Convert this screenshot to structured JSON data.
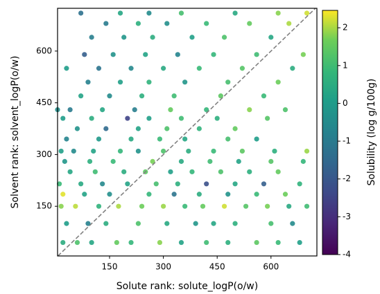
{
  "chart_data": {
    "type": "scatter",
    "x_label": "Solute rank: solute_logP(o/w)",
    "y_label": "Solvent rank: solvent_logP(o/w)",
    "colorbar_label": "Solubility (log g/100g)",
    "colormap": "viridis",
    "identity_line": true,
    "xlim": [
      5,
      728
    ],
    "xticks": [
      150,
      300,
      450,
      600
    ],
    "ylim": [
      6,
      724
    ],
    "yticks": [
      150,
      300,
      450,
      600
    ],
    "clim": [
      -4,
      2.46
    ],
    "cticks": [
      -4,
      -3,
      -2,
      -1,
      0,
      1,
      2
    ],
    "x": [
      20,
      60,
      100,
      170,
      210,
      290,
      350,
      420,
      480,
      560,
      620,
      680,
      30,
      90,
      140,
      230,
      310,
      390,
      440,
      500,
      600,
      660,
      15,
      55,
      120,
      175,
      240,
      300,
      360,
      410,
      470,
      530,
      590,
      650,
      700,
      20,
      80,
      150,
      260,
      330,
      400,
      480,
      560,
      640,
      10,
      70,
      130,
      200,
      280,
      340,
      420,
      500,
      580,
      680,
      40,
      110,
      190,
      250,
      320,
      380,
      460,
      540,
      620,
      25,
      95,
      160,
      270,
      350,
      430,
      510,
      600,
      690,
      15,
      50,
      105,
      180,
      230,
      300,
      370,
      440,
      520,
      610,
      700,
      30,
      120,
      210,
      290,
      360,
      480,
      560,
      60,
      140,
      230,
      310,
      400,
      500,
      20,
      100,
      200,
      260,
      350,
      450,
      590,
      5,
      40,
      130,
      220,
      320,
      420,
      540,
      640,
      70,
      150,
      240,
      330,
      460,
      580,
      90,
      180,
      260,
      360,
      480,
      620,
      30,
      120,
      210,
      300,
      400,
      520,
      660,
      80,
      160,
      250,
      340,
      440,
      560,
      690,
      100,
      190,
      270,
      380,
      470,
      600,
      140,
      230,
      310,
      420,
      540,
      650,
      70,
      180,
      260,
      350,
      500,
      620,
      700
    ],
    "values": [
      45,
      45,
      45,
      45,
      45,
      45,
      45,
      45,
      45,
      45,
      45,
      45,
      100,
      100,
      100,
      100,
      100,
      100,
      100,
      100,
      100,
      100,
      150,
      150,
      150,
      150,
      150,
      150,
      150,
      150,
      150,
      150,
      150,
      150,
      150,
      185,
      185,
      185,
      185,
      185,
      185,
      185,
      185,
      185,
      215,
      215,
      215,
      215,
      215,
      215,
      215,
      215,
      215,
      215,
      250,
      250,
      250,
      250,
      250,
      250,
      250,
      250,
      250,
      280,
      280,
      280,
      280,
      280,
      280,
      280,
      280,
      280,
      310,
      310,
      310,
      310,
      310,
      310,
      310,
      310,
      310,
      310,
      310,
      345,
      345,
      345,
      345,
      345,
      345,
      345,
      375,
      375,
      375,
      375,
      375,
      375,
      405,
      405,
      405,
      405,
      405,
      405,
      405,
      430,
      430,
      430,
      430,
      430,
      430,
      430,
      430,
      470,
      470,
      470,
      470,
      470,
      470,
      510,
      510,
      510,
      510,
      510,
      510,
      550,
      550,
      550,
      550,
      550,
      550,
      550,
      590,
      590,
      590,
      590,
      590,
      590,
      590,
      640,
      640,
      640,
      640,
      640,
      640,
      680,
      680,
      680,
      680,
      680,
      680,
      710,
      710,
      710,
      710,
      710,
      710,
      710
    ],
    "color_values": [
      0.5,
      1.2,
      0.3,
      1.5,
      0.8,
      1.8,
      0.2,
      1.0,
      0.6,
      1.4,
      0.9,
      0.1,
      0.0,
      -0.8,
      0.5,
      1.2,
      0.4,
      -0.2,
      0.3,
      0.6,
      1.1,
      -0.5,
      1.8,
      2.1,
      0.7,
      2.0,
      1.6,
      1.9,
      0.9,
      1.5,
      2.2,
      1.3,
      1.7,
      0.4,
      1.0,
      2.3,
      0.2,
      -0.4,
      0.8,
      -1.2,
      0.5,
      -0.3,
      0.9,
      1.6,
      0.9,
      0.4,
      -0.6,
      0.2,
      1.1,
      0.6,
      -2.2,
      0.3,
      -1.8,
      0.7,
      0.3,
      1.0,
      0.5,
      1.4,
      0.1,
      0.8,
      1.2,
      0.6,
      1.5,
      -0.2,
      0.6,
      0.9,
      1.7,
      0.4,
      1.0,
      0.2,
      1.3,
      0.8,
      0.1,
      -0.5,
      0.2,
      0.8,
      -0.3,
      1.2,
      0.5,
      0.9,
      1.4,
      0.6,
      1.9,
      -0.7,
      -0.1,
      0.4,
      0.9,
      0.3,
      1.1,
      0.0,
      -0.3,
      -1.5,
      0.2,
      1.2,
      0.7,
      1.5,
      0.0,
      0.5,
      -2.5,
      0.1,
      1.0,
      0.6,
      1.3,
      -0.4,
      -1.0,
      0.3,
      -0.9,
      1.5,
      0.8,
      1.8,
      1.2,
      0.2,
      -0.5,
      0.6,
      1.0,
      1.4,
      0.9,
      -0.8,
      0.1,
      0.7,
      -0.2,
      1.1,
      1.6,
      0.0,
      -1.2,
      -0.6,
      0.4,
      0.9,
      1.3,
      0.5,
      -1.8,
      -0.3,
      0.2,
      -0.7,
      0.8,
      1.0,
      1.7,
      -0.9,
      -0.2,
      0.5,
      0.1,
      1.2,
      0.3,
      -1.0,
      0.6,
      -0.4,
      0.9,
      1.5,
      2.0,
      -1.3,
      0.3,
      -0.5,
      1.1,
      0.4,
      1.8,
      2.2
    ]
  }
}
